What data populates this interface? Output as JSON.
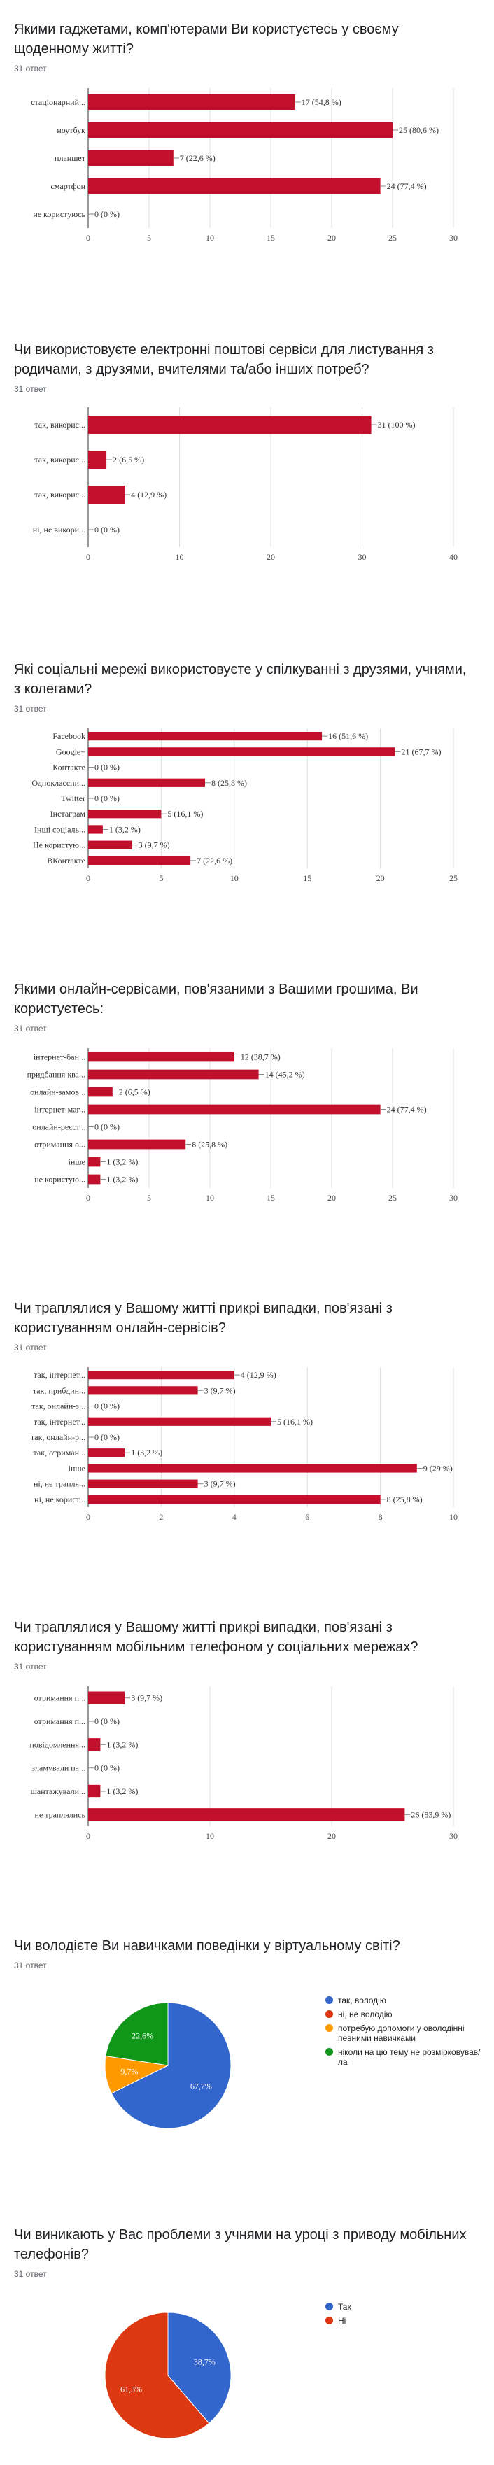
{
  "colors": {
    "bar": "#c2102c",
    "blue": "#3366cc",
    "red": "#dc3912",
    "orange": "#ff9900",
    "green": "#109618"
  },
  "questions": [
    {
      "title": "Якими гаджетами, комп'ютерами Ви користуєтесь у своєму щоденному житті?",
      "count": "31 ответ"
    },
    {
      "title": "Чи використовуєте електронні поштові сервіси для листування з родичами, з друзями, вчителями та/або інших потреб?",
      "count": "31 ответ"
    },
    {
      "title": "Які соціальні мережі використовуєте у спілкуванні з друзями, учнями, з колегами?",
      "count": "31 ответ"
    },
    {
      "title": "Якими онлайн-сервісами, пов'язаними з Вашими грошима, Ви користуєтесь:",
      "count": "31 ответ"
    },
    {
      "title": "Чи траплялися у Вашому житті прикрі випадки, пов'язані з користуванням онлайн-сервісів?",
      "count": "31 ответ"
    },
    {
      "title": "Чи траплялися у Вашому житті прикрі випадки, пов'язані з користуванням мобільним телефоном у соціальних мережах?",
      "count": "31 ответ"
    },
    {
      "title": "Чи володієте Ви навичками поведінки у віртуальному світі?",
      "count": "31 ответ"
    },
    {
      "title": "Чи виникають у Вас проблеми з учнями на уроці з приводу мобільних телефонів?",
      "count": "31 ответ"
    }
  ],
  "chart_data": [
    {
      "type": "bar",
      "orientation": "horizontal",
      "categories": [
        "стаціонарний...",
        "ноутбук",
        "планшет",
        "смартфон",
        "не користуюсь"
      ],
      "values": [
        17,
        25,
        7,
        24,
        0
      ],
      "labels": [
        "17 (54,8 %)",
        "25 (80,6 %)",
        "7 (22,6 %)",
        "24 (77,4 %)",
        "0 (0 %)"
      ],
      "xlim": [
        0,
        30
      ],
      "ticks": [
        "0",
        "5",
        "10",
        "15",
        "20",
        "25",
        "30"
      ],
      "grid": true
    },
    {
      "type": "bar",
      "orientation": "horizontal",
      "categories": [
        "так, викорис...",
        "так, викорис...",
        "так, викорис...",
        "ні, не викори..."
      ],
      "values": [
        31,
        2,
        4,
        0
      ],
      "labels": [
        "31 (100 %)",
        "2 (6,5 %)",
        "4 (12,9 %)",
        "0 (0 %)"
      ],
      "xlim": [
        0,
        40
      ],
      "ticks": [
        "0",
        "10",
        "20",
        "30",
        "40"
      ],
      "grid": true
    },
    {
      "type": "bar",
      "orientation": "horizontal",
      "categories": [
        "Facebook",
        "Google+",
        "Контакте",
        "Одноклассни...",
        "Twitter",
        "Інстаграм",
        "Інші соціаль...",
        "Не користую...",
        "ВКонтакте"
      ],
      "values": [
        16,
        21,
        0,
        8,
        0,
        5,
        1,
        3,
        7
      ],
      "labels": [
        "16 (51,6 %)",
        "21 (67,7 %)",
        "0 (0 %)",
        "8 (25,8 %)",
        "0 (0 %)",
        "5 (16,1 %)",
        "1 (3,2 %)",
        "3 (9,7 %)",
        "7 (22,6 %)"
      ],
      "xlim": [
        0,
        25
      ],
      "ticks": [
        "0",
        "5",
        "10",
        "15",
        "20",
        "25"
      ],
      "grid": true
    },
    {
      "type": "bar",
      "orientation": "horizontal",
      "categories": [
        "інтернет-бан...",
        "придбання ква...",
        "онлайн-замов...",
        "інтернет-маг...",
        "онлайн-реєст...",
        "отримання о...",
        "інше",
        "не користую..."
      ],
      "values": [
        12,
        14,
        2,
        24,
        0,
        8,
        1,
        1
      ],
      "labels": [
        "12 (38,7 %)",
        "14 (45,2 %)",
        "2 (6,5 %)",
        "24 (77,4 %)",
        "0 (0 %)",
        "8 (25,8 %)",
        "1 (3,2 %)",
        "1 (3,2 %)"
      ],
      "xlim": [
        0,
        30
      ],
      "ticks": [
        "0",
        "5",
        "10",
        "15",
        "20",
        "25",
        "30"
      ],
      "grid": true
    },
    {
      "type": "bar",
      "orientation": "horizontal",
      "categories": [
        "так, інтернет...",
        "так, прибдин...",
        "так, онлайн-з...",
        "так, інтернет...",
        "так, онлайн-р...",
        "так, отриман...",
        "інше",
        "ні, не трапля...",
        "ні, не корист..."
      ],
      "values": [
        4,
        3,
        0,
        5,
        0,
        1,
        9,
        3,
        8
      ],
      "labels": [
        "4 (12,9 %)",
        "3 (9,7 %)",
        "0 (0 %)",
        "5 (16,1 %)",
        "0 (0 %)",
        "1 (3,2 %)",
        "9 (29 %)",
        "3 (9,7 %)",
        "8 (25,8 %)"
      ],
      "xlim": [
        0,
        10
      ],
      "ticks": [
        "0",
        "2",
        "4",
        "6",
        "8",
        "10"
      ],
      "grid": true
    },
    {
      "type": "bar",
      "orientation": "horizontal",
      "categories": [
        "отримання п...",
        "отримання п...",
        "повідомлення...",
        "зламували па...",
        "шантажували...",
        "не траплялись"
      ],
      "values": [
        3,
        0,
        1,
        0,
        1,
        26
      ],
      "labels": [
        "3 (9,7 %)",
        "0 (0 %)",
        "1 (3,2 %)",
        "0 (0 %)",
        "1 (3,2 %)",
        "26 (83,9 %)"
      ],
      "xlim": [
        0,
        30
      ],
      "ticks": [
        "0",
        "10",
        "20",
        "30"
      ],
      "grid": true
    },
    {
      "type": "pie",
      "categories": [
        "так, володію",
        "ні, не володію",
        "потребую допомоги у оволодінні певними навичками",
        "ніколи на цю тему не розмірковував/ла"
      ],
      "values": [
        67.7,
        0,
        9.7,
        22.6
      ],
      "slice_labels": [
        "67,7%",
        "",
        "9,7%",
        "22,6%"
      ],
      "colors": [
        "#3366cc",
        "#dc3912",
        "#ff9900",
        "#109618"
      ],
      "legend": "right"
    },
    {
      "type": "pie",
      "categories": [
        "Так",
        "Ні"
      ],
      "values": [
        38.7,
        61.3
      ],
      "slice_labels": [
        "38,7%",
        "61,3%"
      ],
      "colors": [
        "#3366cc",
        "#dc3912"
      ],
      "legend": "right"
    }
  ]
}
